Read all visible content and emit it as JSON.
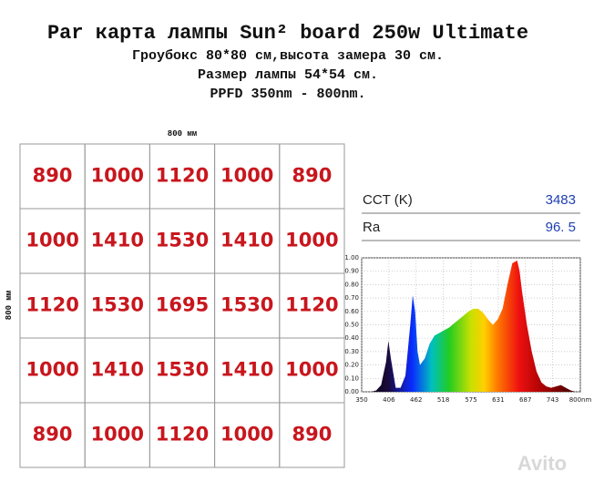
{
  "header": {
    "title": "Par карта лампы Sun² board 250w Ultimate",
    "lines": [
      "Гроубокс 80*80 см,высота замера 30 см.",
      "Размер лампы 54*54 см.",
      "PPFD 350nm - 800nm."
    ]
  },
  "table": {
    "top_label": "800 мм",
    "side_label": "800 мм",
    "rows": [
      [
        890,
        1000,
        1120,
        1000,
        890
      ],
      [
        1000,
        1410,
        1530,
        1410,
        1000
      ],
      [
        1120,
        1530,
        1695,
        1530,
        1120
      ],
      [
        1000,
        1410,
        1530,
        1410,
        1000
      ],
      [
        890,
        1000,
        1120,
        1000,
        890
      ]
    ]
  },
  "meter": {
    "rows": [
      {
        "label": "CCT (K)",
        "value": "3483"
      },
      {
        "label": "Ra",
        "value": "96. 5"
      }
    ]
  },
  "chart_data": {
    "type": "area",
    "x": [
      350,
      360,
      370,
      380,
      390,
      400,
      405,
      410,
      420,
      430,
      440,
      450,
      455,
      460,
      465,
      470,
      480,
      490,
      500,
      510,
      520,
      530,
      540,
      550,
      560,
      570,
      580,
      590,
      600,
      610,
      620,
      630,
      640,
      650,
      660,
      670,
      675,
      680,
      690,
      700,
      710,
      720,
      730,
      740,
      750,
      760,
      770,
      780,
      790,
      800
    ],
    "values": [
      0,
      0,
      0,
      0.01,
      0.05,
      0.22,
      0.38,
      0.25,
      0.03,
      0.03,
      0.12,
      0.5,
      0.72,
      0.6,
      0.3,
      0.2,
      0.25,
      0.36,
      0.42,
      0.44,
      0.46,
      0.48,
      0.51,
      0.54,
      0.57,
      0.6,
      0.62,
      0.62,
      0.59,
      0.54,
      0.5,
      0.54,
      0.62,
      0.8,
      0.96,
      0.98,
      0.9,
      0.75,
      0.5,
      0.3,
      0.15,
      0.07,
      0.04,
      0.03,
      0.04,
      0.05,
      0.03,
      0.01,
      0,
      0
    ],
    "xlim": [
      350,
      800
    ],
    "ylim": [
      0,
      1
    ],
    "xticks": [
      350,
      406,
      462,
      518,
      575,
      631,
      687,
      743,
      {
        "value": 800,
        "label": "800nm"
      }
    ],
    "yticks": [
      {
        "value": 0,
        "label": "0.00"
      },
      {
        "value": 0.1,
        "label": "0.10"
      },
      {
        "value": 0.2,
        "label": "0.20"
      },
      {
        "value": 0.3,
        "label": "0.30"
      },
      {
        "value": 0.4,
        "label": "0.40"
      },
      {
        "value": 0.5,
        "label": "0.50"
      },
      {
        "value": 0.6,
        "label": "0.60"
      },
      {
        "value": 0.7,
        "label": "0.70"
      },
      {
        "value": 0.8,
        "label": "0.80"
      },
      {
        "value": 0.9,
        "label": "0.90"
      },
      {
        "value": 1,
        "label": "1.00"
      }
    ],
    "grid": true
  },
  "watermark": "Avito"
}
